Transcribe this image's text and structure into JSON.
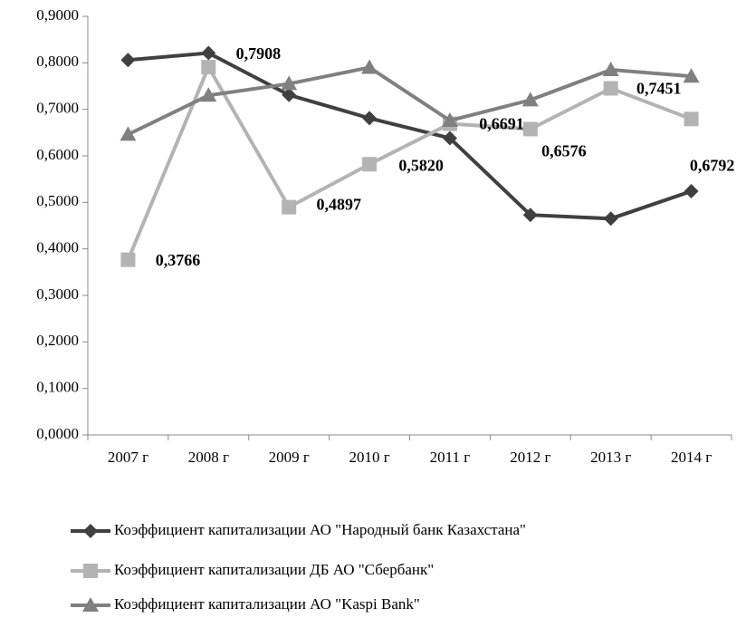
{
  "chart_data": {
    "type": "line",
    "categories": [
      "2007 г",
      "2008 г",
      "2009 г",
      "2010 г",
      "2011 г",
      "2012 г",
      "2013 г",
      "2014 г"
    ],
    "series": [
      {
        "name": "Коэффициент капитализации  АО \"Народный банк Казахстана\"",
        "color": "#404040",
        "marker": "diamond",
        "values": [
          0.806,
          0.821,
          0.731,
          0.681,
          0.638,
          0.473,
          0.465,
          0.524
        ]
      },
      {
        "name": "Коэффициент капитализации  ДБ АО  \"Сбербанк\"",
        "color": "#b3b3b3",
        "marker": "square",
        "values": [
          0.3766,
          0.7908,
          0.4897,
          0.582,
          0.6691,
          0.6576,
          0.7451,
          0.6792
        ],
        "value_labels": [
          "0,3766",
          "0,7908",
          "0,4897",
          "0,5820",
          "0,6691",
          "0,6576",
          "0,7451",
          "0,6792"
        ]
      },
      {
        "name": "Коэффициент капитализации  АО \"Kaspi Bank\"",
        "color": "#808080",
        "marker": "triangle",
        "values": [
          0.646,
          0.73,
          0.755,
          0.79,
          0.676,
          0.72,
          0.785,
          0.771
        ]
      }
    ],
    "ylim": [
      0,
      0.9
    ],
    "yticks": [
      {
        "value": 0,
        "label": "0,0000"
      },
      {
        "value": 0.1,
        "label": "0,1000"
      },
      {
        "value": 0.2,
        "label": "0,2000"
      },
      {
        "value": 0.3,
        "label": "0,3000"
      },
      {
        "value": 0.4,
        "label": "0,4000"
      },
      {
        "value": 0.5,
        "label": "0,5000"
      },
      {
        "value": 0.6,
        "label": "0,6000"
      },
      {
        "value": 0.7,
        "label": "0,7000"
      },
      {
        "value": 0.8,
        "label": "0,8000"
      },
      {
        "value": 0.9,
        "label": "0,9000"
      }
    ],
    "legend": "bottom"
  }
}
